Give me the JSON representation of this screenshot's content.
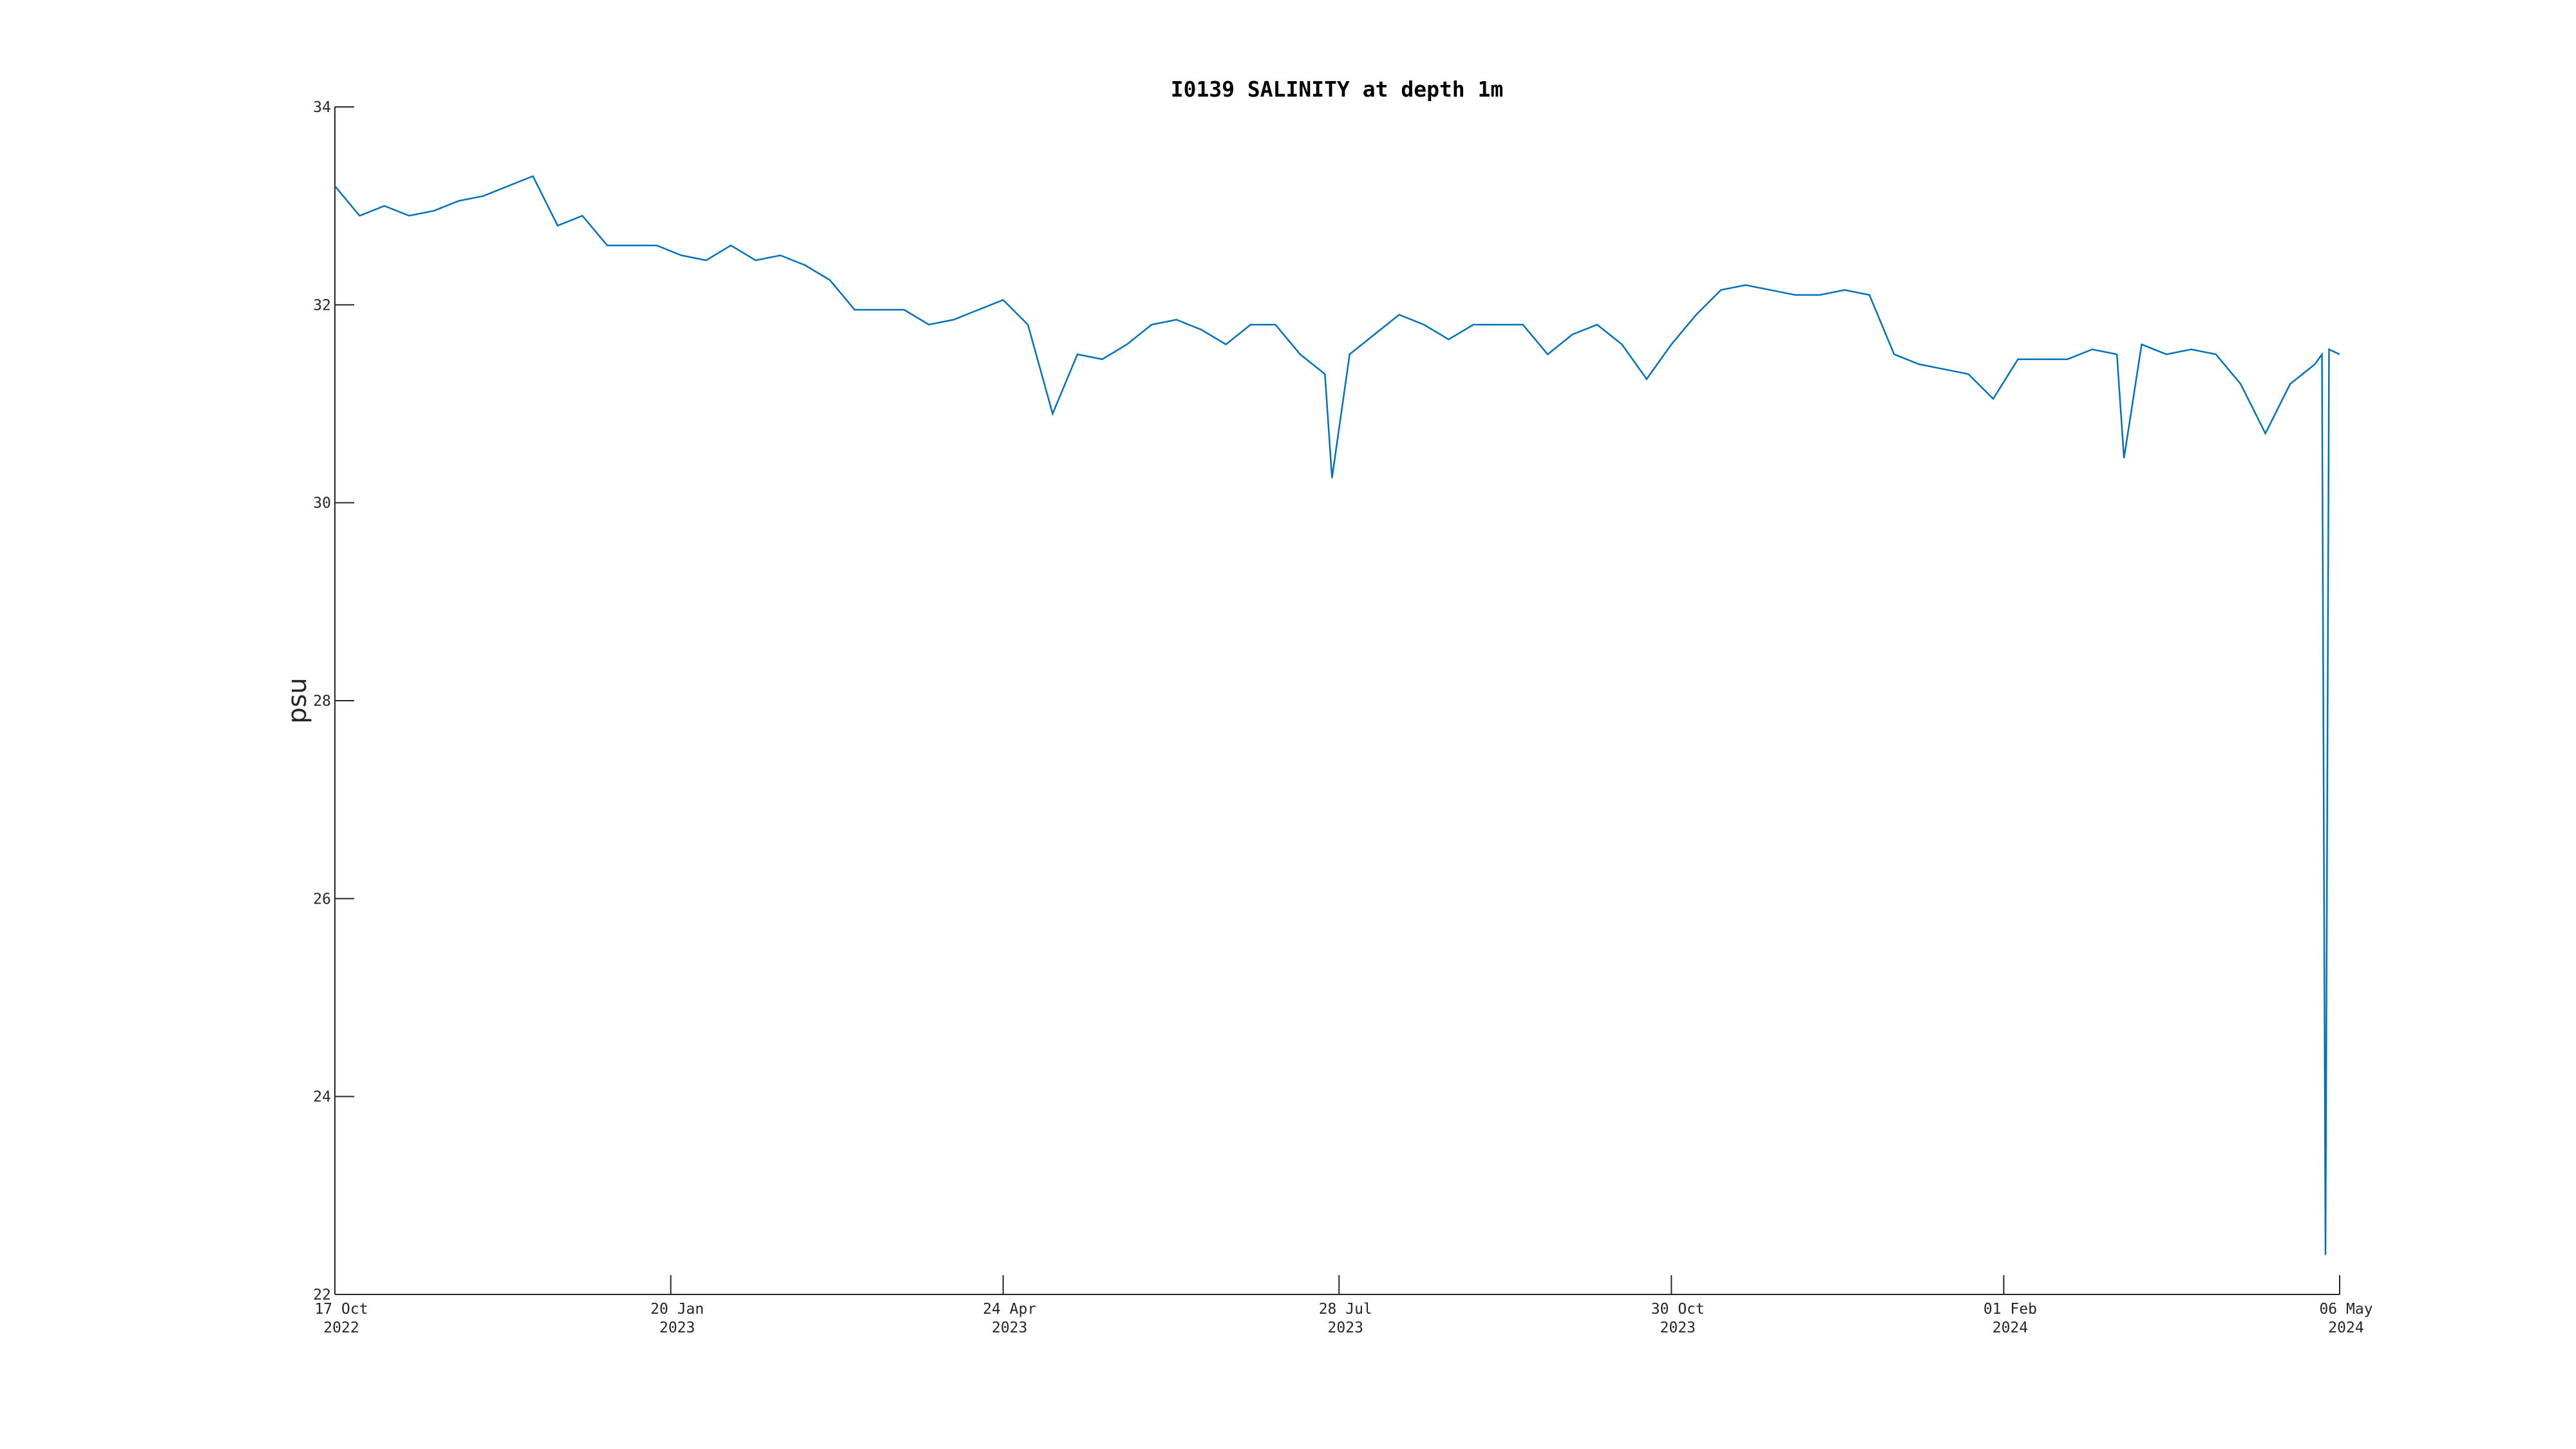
{
  "chart_data": {
    "type": "line",
    "title": "I0139 SALINITY at depth 1m",
    "y_label": "psu",
    "color": "#0072bd",
    "grid": false,
    "x": [
      "2022-10-17",
      "2022-10-24",
      "2022-10-31",
      "2022-11-07",
      "2022-11-14",
      "2022-11-21",
      "2022-11-28",
      "2022-12-05",
      "2022-12-12",
      "2022-12-19",
      "2022-12-26",
      "2023-01-02",
      "2023-01-09",
      "2023-01-16",
      "2023-01-23",
      "2023-01-30",
      "2023-02-06",
      "2023-02-13",
      "2023-02-20",
      "2023-02-27",
      "2023-03-06",
      "2023-03-13",
      "2023-03-20",
      "2023-03-27",
      "2023-04-03",
      "2023-04-10",
      "2023-04-17",
      "2023-04-24",
      "2023-05-01",
      "2023-05-08",
      "2023-05-15",
      "2023-05-22",
      "2023-05-29",
      "2023-06-05",
      "2023-06-12",
      "2023-06-19",
      "2023-06-26",
      "2023-07-03",
      "2023-07-10",
      "2023-07-17",
      "2023-07-24",
      "2023-07-26",
      "2023-07-31",
      "2023-08-07",
      "2023-08-14",
      "2023-08-21",
      "2023-08-28",
      "2023-09-04",
      "2023-09-11",
      "2023-09-18",
      "2023-09-25",
      "2023-10-02",
      "2023-10-09",
      "2023-10-16",
      "2023-10-23",
      "2023-10-30",
      "2023-11-06",
      "2023-11-13",
      "2023-11-20",
      "2023-11-27",
      "2023-12-04",
      "2023-12-11",
      "2023-12-18",
      "2023-12-25",
      "2024-01-01",
      "2024-01-08",
      "2024-01-15",
      "2024-01-22",
      "2024-01-29",
      "2024-02-05",
      "2024-02-12",
      "2024-02-19",
      "2024-02-26",
      "2024-03-04",
      "2024-03-06",
      "2024-03-11",
      "2024-03-18",
      "2024-03-25",
      "2024-04-01",
      "2024-04-08",
      "2024-04-15",
      "2024-04-22",
      "2024-04-29",
      "2024-05-01",
      "2024-05-02",
      "2024-05-03",
      "2024-05-06"
    ],
    "values": [
      33.2,
      32.9,
      33.0,
      32.9,
      32.95,
      33.05,
      33.1,
      33.2,
      33.3,
      32.8,
      32.9,
      32.6,
      32.6,
      32.6,
      32.5,
      32.45,
      32.6,
      32.45,
      32.5,
      32.4,
      32.25,
      31.95,
      31.95,
      31.95,
      31.8,
      31.85,
      31.95,
      32.05,
      31.8,
      30.9,
      31.5,
      31.45,
      31.6,
      31.8,
      31.85,
      31.75,
      31.6,
      31.8,
      31.8,
      31.5,
      31.3,
      30.25,
      31.5,
      31.7,
      31.9,
      31.8,
      31.65,
      31.8,
      31.8,
      31.8,
      31.5,
      31.7,
      31.8,
      31.6,
      31.25,
      31.6,
      31.9,
      32.15,
      32.2,
      32.15,
      32.1,
      32.1,
      32.15,
      32.1,
      31.5,
      31.4,
      31.35,
      31.3,
      31.05,
      31.45,
      31.45,
      31.45,
      31.55,
      31.5,
      30.45,
      31.6,
      31.5,
      31.55,
      31.5,
      31.2,
      30.7,
      31.2,
      31.4,
      31.5,
      22.4,
      31.55,
      31.5
    ],
    "xlim": [
      "2022-10-17",
      "2024-05-06"
    ],
    "xticks": [
      {
        "value": "2022-10-17",
        "label": [
          "17 Oct",
          "2022"
        ]
      },
      {
        "value": "2023-01-20",
        "label": [
          "20 Jan",
          "2023"
        ]
      },
      {
        "value": "2023-04-24",
        "label": [
          "24 Apr",
          "2023"
        ]
      },
      {
        "value": "2023-07-28",
        "label": [
          "28 Jul",
          "2023"
        ]
      },
      {
        "value": "2023-10-30",
        "label": [
          "30 Oct",
          "2023"
        ]
      },
      {
        "value": "2024-02-01",
        "label": [
          "01 Feb",
          "2024"
        ]
      },
      {
        "value": "2024-05-06",
        "label": [
          "06 May",
          "2024"
        ]
      }
    ],
    "ylim": [
      22,
      34
    ],
    "yticks": [
      22,
      24,
      26,
      28,
      30,
      32,
      34
    ]
  }
}
